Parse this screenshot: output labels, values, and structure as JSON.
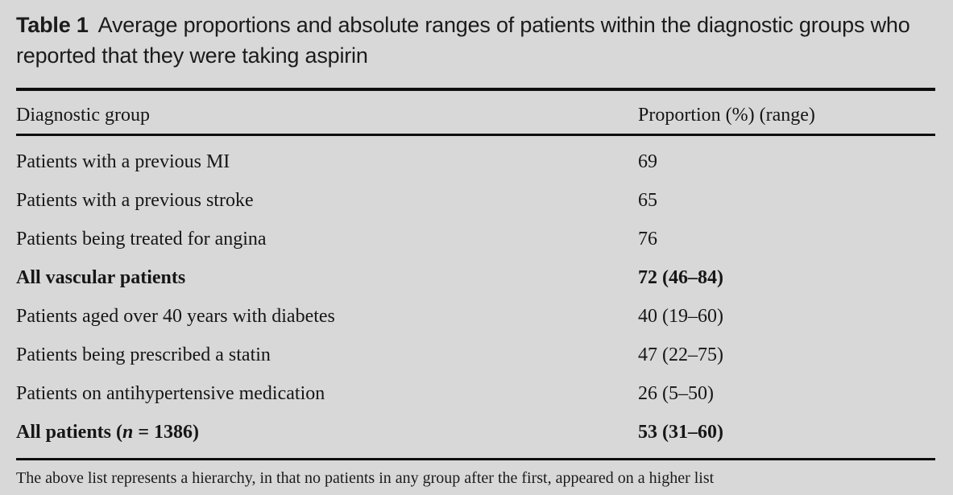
{
  "table": {
    "label": "Table 1",
    "title": "Average proportions and absolute ranges of patients within the diagnostic groups who reported that they were taking aspirin",
    "columns": {
      "group": "Diagnostic group",
      "proportion": "Proportion (%) (range)"
    },
    "rows": [
      {
        "group_parts": [
          {
            "text": "Patients with a previous MI"
          }
        ],
        "value": "69",
        "bold": false
      },
      {
        "group_parts": [
          {
            "text": "Patients with a previous stroke"
          }
        ],
        "value": "65",
        "bold": false
      },
      {
        "group_parts": [
          {
            "text": "Patients being treated for angina"
          }
        ],
        "value": "76",
        "bold": false
      },
      {
        "group_parts": [
          {
            "text": "All vascular patients"
          }
        ],
        "value": "72 (46–84)",
        "bold": true
      },
      {
        "group_parts": [
          {
            "text": "Patients aged over 40 years with diabetes"
          }
        ],
        "value": "40 (19–60)",
        "bold": false
      },
      {
        "group_parts": [
          {
            "text": "Patients being prescribed a statin"
          }
        ],
        "value": "47 (22–75)",
        "bold": false
      },
      {
        "group_parts": [
          {
            "text": "Patients on antihypertensive medication"
          }
        ],
        "value": "26 (5–50)",
        "bold": false
      },
      {
        "group_parts": [
          {
            "text": "All patients ("
          },
          {
            "text": "n",
            "italic": true
          },
          {
            "text": " = 1386)"
          }
        ],
        "value": "53 (31–60)",
        "bold": true
      }
    ],
    "footnote": "The above list represents a hierarchy, in that no patients in any group after the first, appeared on a higher list",
    "colors": {
      "background": "#d8d8d8",
      "text": "#161616",
      "rule": "#0e0e0e"
    }
  }
}
